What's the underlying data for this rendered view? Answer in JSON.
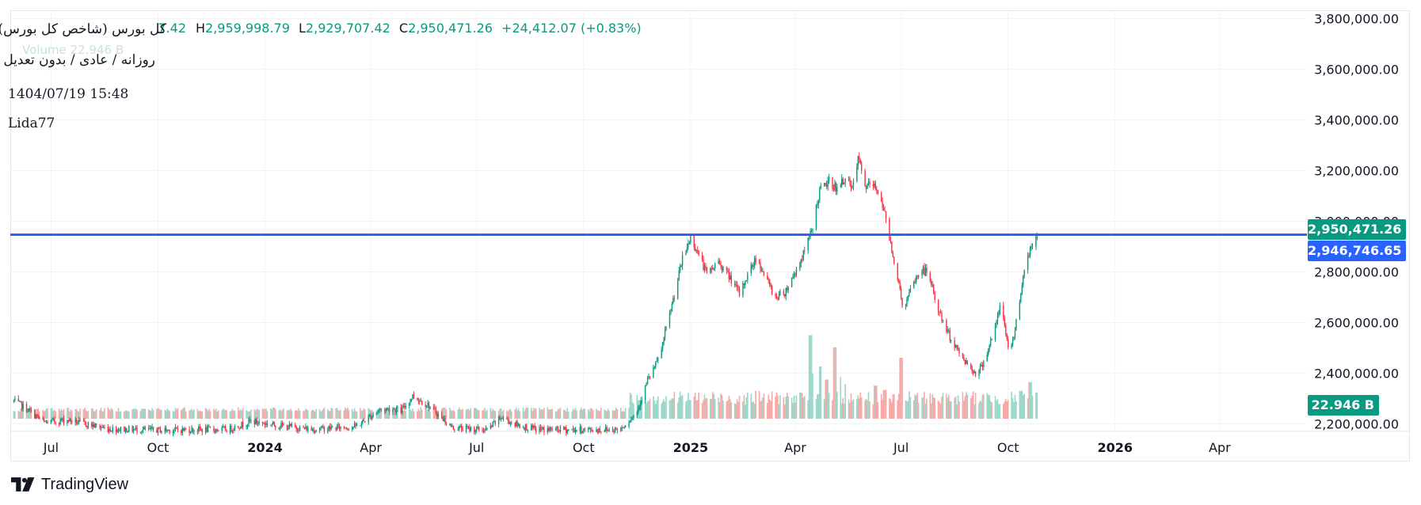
{
  "legend": {
    "symbol_title": "کل بورس (شاخص کل بورس)",
    "open_value": "7.42",
    "high_key": "H",
    "high_value": "2,959,998.79",
    "low_key": "L",
    "low_value": "2,929,707.42",
    "close_key": "C",
    "close_value": "2,950,471.26",
    "change": "+24,412.07 (+0.83%)",
    "subtitle": "روزانه / عادی / بدون تعدیل",
    "timestamp": "1404/07/19 15:48",
    "author": "Lida77",
    "volume_label": "Volume",
    "volume_value": "22.946 B"
  },
  "price_tags": {
    "last": "2,950,471.26",
    "line": "2,946,746.65",
    "volume": "22.946 B"
  },
  "colors": {
    "up": "#089981",
    "down": "#f23645",
    "horizontal_line": "#2962ff",
    "last_price_tag": "#089981",
    "line_price_tag": "#2962ff",
    "volume_up": "#9bd7c9",
    "volume_down": "#f7a9a7"
  },
  "brand": {
    "name": "TradingView",
    "icon": "tradingview-logo-icon"
  },
  "chart_data": {
    "type": "candlestick",
    "y_ticks": [
      "3,800,000.00",
      "3,600,000.00",
      "3,400,000.00",
      "3,200,000.00",
      "3,000,000.00",
      "2,800,000.00",
      "2,600,000.00",
      "2,400,000.00",
      "2,200,000.00"
    ],
    "y_tick_values": [
      3800000,
      3600000,
      3400000,
      3200000,
      3000000,
      2800000,
      2600000,
      2400000,
      2200000
    ],
    "ylim": [
      2170000,
      3830000
    ],
    "x_ticks": [
      {
        "label": "Jul",
        "date": "2023-07-01",
        "bold": false
      },
      {
        "label": "Oct",
        "date": "2023-10-01",
        "bold": false
      },
      {
        "label": "2024",
        "date": "2024-01-01",
        "bold": true
      },
      {
        "label": "Apr",
        "date": "2024-04-01",
        "bold": false
      },
      {
        "label": "Jul",
        "date": "2024-07-01",
        "bold": false
      },
      {
        "label": "Oct",
        "date": "2024-10-01",
        "bold": false
      },
      {
        "label": "2025",
        "date": "2025-01-01",
        "bold": true
      },
      {
        "label": "Apr",
        "date": "2025-04-01",
        "bold": false
      },
      {
        "label": "Jul",
        "date": "2025-07-01",
        "bold": false
      },
      {
        "label": "Oct",
        "date": "2025-10-01",
        "bold": false
      },
      {
        "label": "2026",
        "date": "2026-01-01",
        "bold": true
      },
      {
        "label": "Apr",
        "date": "2026-04-01",
        "bold": false
      }
    ],
    "xlim": [
      "2023-05-27",
      "2026-06-15"
    ],
    "horizontal_line": 2946746.65,
    "grid": true,
    "close_path": [
      [
        "2023-05-30",
        2290000
      ],
      [
        "2023-06-10",
        2260000
      ],
      [
        "2023-06-25",
        2205000
      ],
      [
        "2023-07-15",
        2215000
      ],
      [
        "2023-08-20",
        2180000
      ],
      [
        "2023-10-01",
        2175000
      ],
      [
        "2023-12-01",
        2178000
      ],
      [
        "2023-12-20",
        2210000
      ],
      [
        "2024-01-10",
        2195000
      ],
      [
        "2024-02-10",
        2178000
      ],
      [
        "2024-03-20",
        2190000
      ],
      [
        "2024-04-08",
        2255000
      ],
      [
        "2024-04-20",
        2260000
      ],
      [
        "2024-04-27",
        2250000
      ],
      [
        "2024-05-07",
        2310000
      ],
      [
        "2024-05-20",
        2275000
      ],
      [
        "2024-06-10",
        2185000
      ],
      [
        "2024-06-25",
        2180000
      ],
      [
        "2024-07-10",
        2175000
      ],
      [
        "2024-07-22",
        2225000
      ],
      [
        "2024-08-05",
        2195000
      ],
      [
        "2024-08-20",
        2178000
      ],
      [
        "2024-10-01",
        2176000
      ],
      [
        "2024-11-01",
        2178000
      ],
      [
        "2024-11-15",
        2240000
      ],
      [
        "2024-11-25",
        2370000
      ],
      [
        "2024-12-05",
        2460000
      ],
      [
        "2024-12-15",
        2650000
      ],
      [
        "2024-12-25",
        2850000
      ],
      [
        "2025-01-01",
        2935000
      ],
      [
        "2025-01-08",
        2870000
      ],
      [
        "2025-01-15",
        2790000
      ],
      [
        "2025-01-25",
        2840000
      ],
      [
        "2025-02-05",
        2770000
      ],
      [
        "2025-02-12",
        2710000
      ],
      [
        "2025-02-20",
        2800000
      ],
      [
        "2025-02-27",
        2860000
      ],
      [
        "2025-03-06",
        2780000
      ],
      [
        "2025-03-15",
        2700000
      ],
      [
        "2025-03-23",
        2720000
      ],
      [
        "2025-04-01",
        2800000
      ],
      [
        "2025-04-08",
        2870000
      ],
      [
        "2025-04-15",
        2960000
      ],
      [
        "2025-04-22",
        3120000
      ],
      [
        "2025-05-01",
        3160000
      ],
      [
        "2025-05-08",
        3120000
      ],
      [
        "2025-05-14",
        3180000
      ],
      [
        "2025-05-20",
        3120000
      ],
      [
        "2025-05-25",
        3250000
      ],
      [
        "2025-05-31",
        3140000
      ],
      [
        "2025-06-07",
        3140000
      ],
      [
        "2025-06-13",
        3110000
      ],
      [
        "2025-06-20",
        2960000
      ],
      [
        "2025-06-27",
        2800000
      ],
      [
        "2025-07-03",
        2650000
      ],
      [
        "2025-07-12",
        2760000
      ],
      [
        "2025-07-19",
        2810000
      ],
      [
        "2025-07-25",
        2790000
      ],
      [
        "2025-08-01",
        2660000
      ],
      [
        "2025-08-10",
        2560000
      ],
      [
        "2025-08-20",
        2480000
      ],
      [
        "2025-08-30",
        2420000
      ],
      [
        "2025-09-05",
        2395000
      ],
      [
        "2025-09-12",
        2470000
      ],
      [
        "2025-09-20",
        2580000
      ],
      [
        "2025-09-25",
        2680000
      ],
      [
        "2025-10-01",
        2500000
      ],
      [
        "2025-10-06",
        2540000
      ],
      [
        "2025-10-13",
        2760000
      ],
      [
        "2025-10-20",
        2895000
      ],
      [
        "2025-10-26",
        2950471
      ]
    ],
    "volume_spikes": [
      [
        "2025-04-05",
        0.3
      ],
      [
        "2025-04-10",
        0.26
      ],
      [
        "2025-04-14",
        0.96
      ],
      [
        "2025-04-17",
        0.52
      ],
      [
        "2025-04-23",
        0.6
      ],
      [
        "2025-04-28",
        0.45
      ],
      [
        "2025-05-05",
        0.82
      ],
      [
        "2025-05-09",
        0.48
      ],
      [
        "2025-05-15",
        0.4
      ],
      [
        "2025-06-09",
        0.38
      ],
      [
        "2025-06-17",
        0.33
      ],
      [
        "2025-06-25",
        0.28
      ],
      [
        "2025-07-01",
        0.7
      ],
      [
        "2025-07-10",
        0.25
      ],
      [
        "2025-08-15",
        0.24
      ],
      [
        "2025-10-12",
        0.32
      ],
      [
        "2025-10-20",
        0.42
      ],
      [
        "2025-10-26",
        0.3
      ]
    ]
  }
}
